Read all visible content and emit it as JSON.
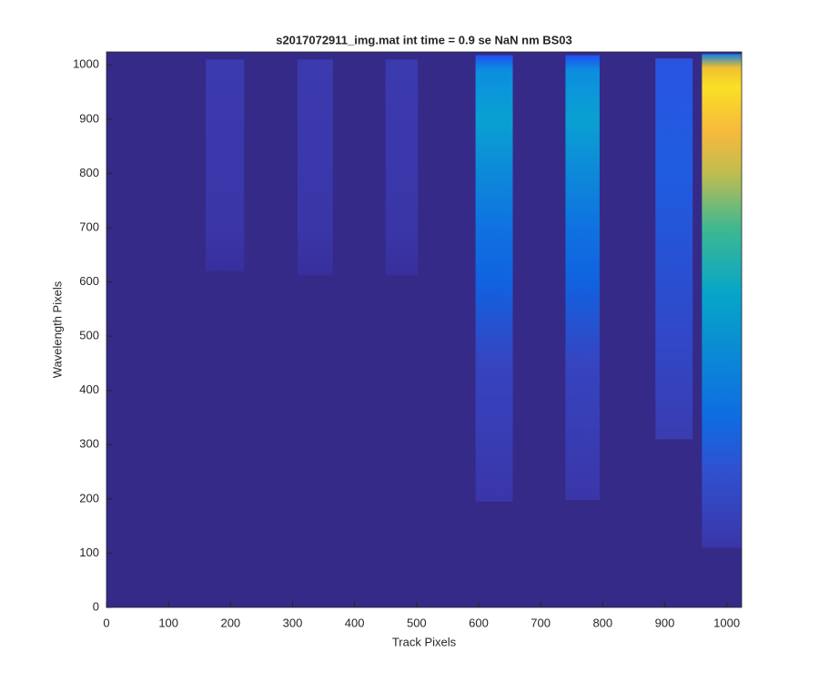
{
  "chart_data": {
    "type": "image",
    "title": "s2017072911_img.mat int time = 0.9 se  NaN nm BS03",
    "xlabel": "Track Pixels",
    "ylabel": "Wavelength Pixels",
    "xlim": [
      0,
      1024
    ],
    "ylim": [
      0,
      1024
    ],
    "xticks": [
      0,
      100,
      200,
      300,
      400,
      500,
      600,
      700,
      800,
      900,
      1000
    ],
    "yticks": [
      0,
      100,
      200,
      300,
      400,
      500,
      600,
      700,
      800,
      900,
      1000
    ],
    "background": "#352a87",
    "tracks": [
      {
        "x": [
          160,
          222
        ],
        "y": [
          620,
          1010
        ],
        "stops": [
          {
            "y": 620,
            "color": "#382f9c"
          },
          {
            "y": 700,
            "color": "#3a36a8"
          },
          {
            "y": 1010,
            "color": "#3b3aae"
          }
        ]
      },
      {
        "x": [
          308,
          365
        ],
        "y": [
          612,
          1010
        ],
        "stops": [
          {
            "y": 612,
            "color": "#382f9c"
          },
          {
            "y": 700,
            "color": "#3a36a8"
          },
          {
            "y": 1010,
            "color": "#3b3aae"
          }
        ]
      },
      {
        "x": [
          450,
          502
        ],
        "y": [
          612,
          1010
        ],
        "stops": [
          {
            "y": 612,
            "color": "#382f9c"
          },
          {
            "y": 700,
            "color": "#3a36a8"
          },
          {
            "y": 1010,
            "color": "#3b3aae"
          }
        ]
      },
      {
        "x": [
          595,
          655
        ],
        "y": [
          195,
          1018
        ],
        "stops": [
          {
            "y": 195,
            "color": "#3a36a8"
          },
          {
            "y": 450,
            "color": "#3644c0"
          },
          {
            "y": 600,
            "color": "#1162e0"
          },
          {
            "y": 700,
            "color": "#0f72e0"
          },
          {
            "y": 900,
            "color": "#0aa0d2"
          },
          {
            "y": 990,
            "color": "#0c8ee0"
          },
          {
            "y": 1018,
            "color": "#2050f0"
          }
        ]
      },
      {
        "x": [
          740,
          795
        ],
        "y": [
          198,
          1018
        ],
        "stops": [
          {
            "y": 198,
            "color": "#3a36a8"
          },
          {
            "y": 450,
            "color": "#3644c0"
          },
          {
            "y": 600,
            "color": "#1162e0"
          },
          {
            "y": 700,
            "color": "#0f72e0"
          },
          {
            "y": 900,
            "color": "#0aa0d2"
          },
          {
            "y": 990,
            "color": "#0c8ee0"
          },
          {
            "y": 1018,
            "color": "#2050f0"
          }
        ]
      },
      {
        "x": [
          885,
          945
        ],
        "y": [
          310,
          1012
        ],
        "stops": [
          {
            "y": 310,
            "color": "#3a3cb0"
          },
          {
            "y": 500,
            "color": "#3048c8"
          },
          {
            "y": 800,
            "color": "#1f5ce0"
          },
          {
            "y": 1012,
            "color": "#2a54e0"
          }
        ]
      },
      {
        "x": [
          960,
          1024
        ],
        "y": [
          110,
          1020
        ],
        "stops": [
          {
            "y": 110,
            "color": "#3a36a8"
          },
          {
            "y": 250,
            "color": "#3050d0"
          },
          {
            "y": 350,
            "color": "#0f6ce2"
          },
          {
            "y": 580,
            "color": "#06a6c8"
          },
          {
            "y": 700,
            "color": "#40b890"
          },
          {
            "y": 800,
            "color": "#c0bc50"
          },
          {
            "y": 880,
            "color": "#f8ba3c"
          },
          {
            "y": 960,
            "color": "#f9e024"
          },
          {
            "y": 995,
            "color": "#f0c030"
          },
          {
            "y": 1020,
            "color": "#1080e0"
          }
        ]
      }
    ]
  }
}
